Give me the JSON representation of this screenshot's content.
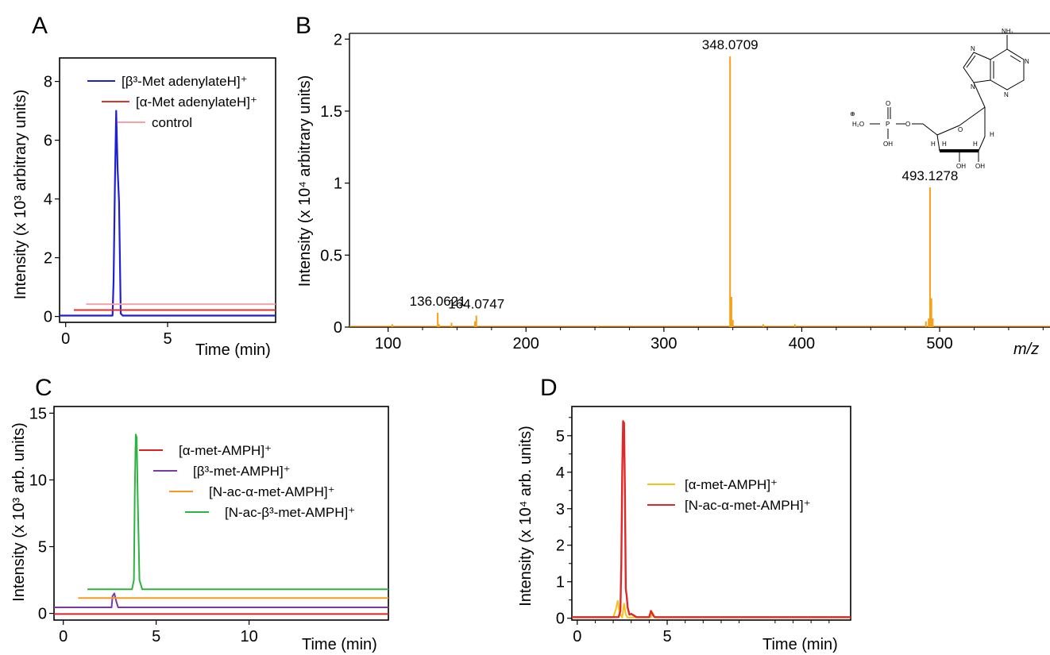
{
  "panels": [
    {
      "id": "A",
      "label": "A",
      "xlabel": "Time (min)",
      "ylabel": "Intensity (x 10³ arbitrary units)"
    },
    {
      "id": "B",
      "label": "B",
      "xlabel": "m/z",
      "ylabel": "Intensity (x 10⁴ arbitrary units)"
    },
    {
      "id": "C",
      "label": "C",
      "xlabel": "Time (min)",
      "ylabel": "Intensity (x 10³ arb. units)"
    },
    {
      "id": "D",
      "label": "D",
      "xlabel": "Time (min)",
      "ylabel": "Intensity (x 10⁴ arb. units)"
    }
  ],
  "structure": {
    "labels": {
      "nh2": "NH₂",
      "h2o": "H₂O",
      "p": "P",
      "o": "O",
      "oh": "OH",
      "h": "H",
      "n": "N",
      "charge": "⊕"
    }
  },
  "chart_data": [
    {
      "id": "A",
      "type": "line",
      "xlabel": "Time (min)",
      "ylabel": "Intensity (x 10³ arbitrary units)",
      "xlim": [
        -0.3,
        10.3
      ],
      "ylim": [
        -0.2,
        8.8
      ],
      "xticks": [
        0,
        5
      ],
      "yticks": [
        0,
        2,
        4,
        6,
        8
      ],
      "legend_position": "top-right",
      "series": [
        {
          "name": "[β³-Met adenylateH]⁺",
          "color": "#1f1fd6",
          "width": 2.2,
          "x": [
            -0.3,
            2.3,
            2.35,
            2.42,
            2.48,
            2.55,
            2.62,
            2.7,
            2.8,
            10.3
          ],
          "y": [
            0.03,
            0.03,
            1.2,
            4.7,
            7.0,
            5.0,
            3.9,
            0.1,
            0.03,
            0.03
          ]
        },
        {
          "name": "[α-Met adenylateH]⁺",
          "color": "#e03030",
          "width": 2,
          "x": [
            0.4,
            10.3
          ],
          "y": [
            0.22,
            0.22
          ]
        },
        {
          "name": "control",
          "color": "#f7a1a8",
          "width": 2,
          "x": [
            1.0,
            10.3
          ],
          "y": [
            0.42,
            0.42
          ]
        }
      ]
    },
    {
      "id": "B",
      "type": "bar",
      "xlabel": "m/z",
      "ylabel": "Intensity (x 10⁴ arbitrary units)",
      "xlim": [
        72,
        580
      ],
      "ylim": [
        0,
        2.04
      ],
      "xticks": [
        100,
        200,
        300,
        400,
        500
      ],
      "yticks": [
        0,
        0.5,
        1.0,
        1.5,
        2.0
      ],
      "color": "#f5a11a",
      "x": [
        103,
        136,
        137,
        146,
        163,
        164,
        252,
        348,
        349,
        350,
        372,
        395,
        490,
        492,
        493,
        494,
        495
      ],
      "values": [
        0.02,
        0.1,
        0.02,
        0.03,
        0.04,
        0.08,
        0.01,
        1.88,
        0.21,
        0.05,
        0.02,
        0.02,
        0.04,
        0.06,
        0.97,
        0.2,
        0.06
      ],
      "annotations": [
        {
          "x": 136,
          "y": 0.1,
          "text": "136.0621"
        },
        {
          "x": 164,
          "y": 0.08,
          "text": "164.0747"
        },
        {
          "x": 348,
          "y": 1.88,
          "text": "348.0709"
        },
        {
          "x": 493,
          "y": 0.97,
          "text": "493.1278"
        }
      ]
    },
    {
      "id": "C",
      "type": "line",
      "xlabel": "Time (min)",
      "ylabel": "Intensity (x 10³ arb. units)",
      "xlim": [
        -0.5,
        17.5
      ],
      "ylim": [
        -0.5,
        15.5
      ],
      "xticks": [
        0,
        5,
        10
      ],
      "yticks": [
        0,
        5,
        10,
        15
      ],
      "legend_position": "top-right",
      "series": [
        {
          "name": "[α-met-AMPH]⁺",
          "color": "#e02020",
          "width": 2,
          "x": [
            -0.5,
            17.5
          ],
          "y": [
            -0.05,
            -0.05
          ]
        },
        {
          "name": "[β³-met-AMPH]⁺",
          "color": "#7b38a8",
          "width": 2,
          "x": [
            -0.5,
            2.6,
            2.65,
            2.75,
            2.85,
            2.95,
            17.5
          ],
          "y": [
            0.45,
            0.45,
            1.3,
            1.5,
            0.9,
            0.45,
            0.45
          ]
        },
        {
          "name": "[N-ac-α-met-AMPH]⁺",
          "color": "#f59a1a",
          "width": 2,
          "x": [
            0.8,
            17.5
          ],
          "y": [
            1.15,
            1.15
          ]
        },
        {
          "name": "[N-ac-β³-met-AMPH]⁺",
          "color": "#2db33f",
          "width": 2,
          "x": [
            1.3,
            3.7,
            3.8,
            3.85,
            3.9,
            3.95,
            4.0,
            4.1,
            4.25,
            17.5
          ],
          "y": [
            1.8,
            1.8,
            2.5,
            9.0,
            13.4,
            13.2,
            9.0,
            2.5,
            1.8,
            1.8
          ]
        }
      ]
    },
    {
      "id": "D",
      "type": "line",
      "xlabel": "Time (min)",
      "ylabel": "Intensity (x 10⁴ arb. units)",
      "xlim": [
        -0.3,
        15.2
      ],
      "ylim": [
        -0.05,
        5.8
      ],
      "xticks": [
        0,
        5
      ],
      "yticks": [
        0,
        1,
        2,
        3,
        4,
        5
      ],
      "legend_position": "center-right",
      "series": [
        {
          "name": "[α-met-AMPH]⁺",
          "color": "#f5c21a",
          "width": 2,
          "x": [
            -0.3,
            2.0,
            2.15,
            2.25,
            2.35,
            2.5,
            2.6,
            2.7,
            2.8,
            4.1,
            4.2,
            4.3,
            15.2
          ],
          "y": [
            0.02,
            0.02,
            0.25,
            0.48,
            0.15,
            0.02,
            0.4,
            0.1,
            0.02,
            0.02,
            0.15,
            0.02,
            0.02
          ]
        },
        {
          "name": "[N-ac-α-met-AMPH]⁺",
          "color": "#e02828",
          "width": 2.4,
          "x": [
            -0.3,
            2.3,
            2.4,
            2.45,
            2.5,
            2.55,
            2.6,
            2.65,
            2.7,
            2.75,
            2.8,
            2.9,
            3.0,
            3.3,
            4.0,
            4.1,
            4.2,
            4.3,
            15.2
          ],
          "y": [
            0.03,
            0.03,
            0.2,
            1.5,
            4.0,
            5.4,
            5.35,
            3.5,
            0.8,
            0.6,
            0.3,
            0.1,
            0.12,
            0.03,
            0.03,
            0.2,
            0.1,
            0.03,
            0.03
          ]
        }
      ]
    }
  ]
}
